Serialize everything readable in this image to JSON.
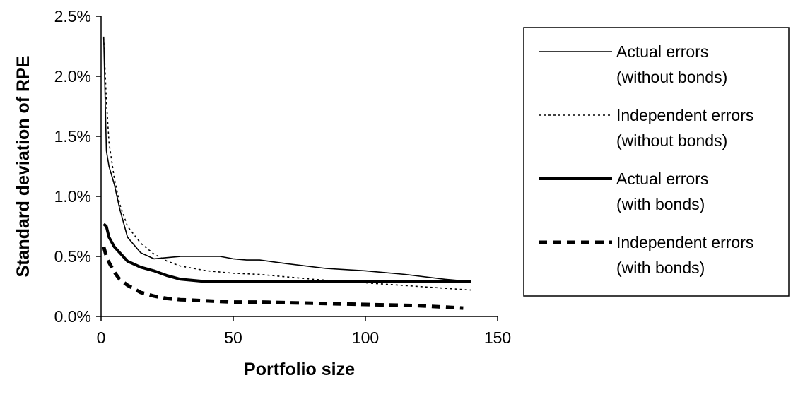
{
  "chart_data": {
    "type": "line",
    "title": "",
    "xlabel": "Portfolio size",
    "ylabel": "Standard deviation of RPE",
    "xlim": [
      0,
      150
    ],
    "ylim": [
      0,
      0.025
    ],
    "x_ticks": [
      0,
      50,
      100,
      150
    ],
    "x_tick_labels": [
      "0",
      "50",
      "100",
      "150"
    ],
    "y_ticks": [
      0,
      0.005,
      0.01,
      0.015,
      0.02,
      0.025
    ],
    "y_tick_labels": [
      "0.0%",
      "0.5%",
      "1.0%",
      "1.5%",
      "2.0%",
      "2.5%"
    ],
    "grid": false,
    "legend_position": "right",
    "series": [
      {
        "name": "Actual errors (without bonds)",
        "style": "thin-solid",
        "x": [
          1,
          2,
          3,
          5,
          7,
          10,
          15,
          20,
          25,
          30,
          40,
          45,
          50,
          55,
          60,
          70,
          85,
          100,
          115,
          130,
          140
        ],
        "y": [
          0.0233,
          0.0138,
          0.0125,
          0.011,
          0.009,
          0.0066,
          0.0053,
          0.0048,
          0.0049,
          0.005,
          0.005,
          0.005,
          0.0048,
          0.0047,
          0.0047,
          0.0044,
          0.004,
          0.0038,
          0.0035,
          0.0031,
          0.0029
        ]
      },
      {
        "name": "Independent errors (without bonds)",
        "style": "dotted",
        "x": [
          1,
          2,
          3,
          5,
          7,
          10,
          15,
          20,
          25,
          30,
          35,
          40,
          50,
          60,
          70,
          80,
          100,
          120,
          140
        ],
        "y": [
          0.0232,
          0.018,
          0.0145,
          0.0115,
          0.0094,
          0.0075,
          0.0061,
          0.0052,
          0.0046,
          0.0042,
          0.004,
          0.0038,
          0.0036,
          0.0035,
          0.0033,
          0.0031,
          0.0028,
          0.0025,
          0.0022
        ]
      },
      {
        "name": "Actual errors (with bonds)",
        "style": "thick-solid",
        "x": [
          1,
          2,
          3,
          5,
          10,
          15,
          20,
          25,
          30,
          35,
          40,
          50,
          60,
          80,
          100,
          120,
          140
        ],
        "y": [
          0.0077,
          0.0075,
          0.0066,
          0.0058,
          0.0046,
          0.0041,
          0.0038,
          0.0034,
          0.0031,
          0.003,
          0.0029,
          0.0029,
          0.0029,
          0.0029,
          0.0029,
          0.0029,
          0.0029
        ]
      },
      {
        "name": "Independent errors (with bonds)",
        "style": "thick-dashed",
        "x": [
          1,
          2,
          3,
          5,
          7,
          10,
          15,
          20,
          25,
          30,
          40,
          50,
          60,
          80,
          100,
          120,
          137
        ],
        "y": [
          0.0058,
          0.005,
          0.0045,
          0.0037,
          0.0031,
          0.0026,
          0.002,
          0.0017,
          0.0015,
          0.0014,
          0.0013,
          0.0012,
          0.0012,
          0.0011,
          0.001,
          0.0009,
          0.0007
        ]
      }
    ]
  }
}
